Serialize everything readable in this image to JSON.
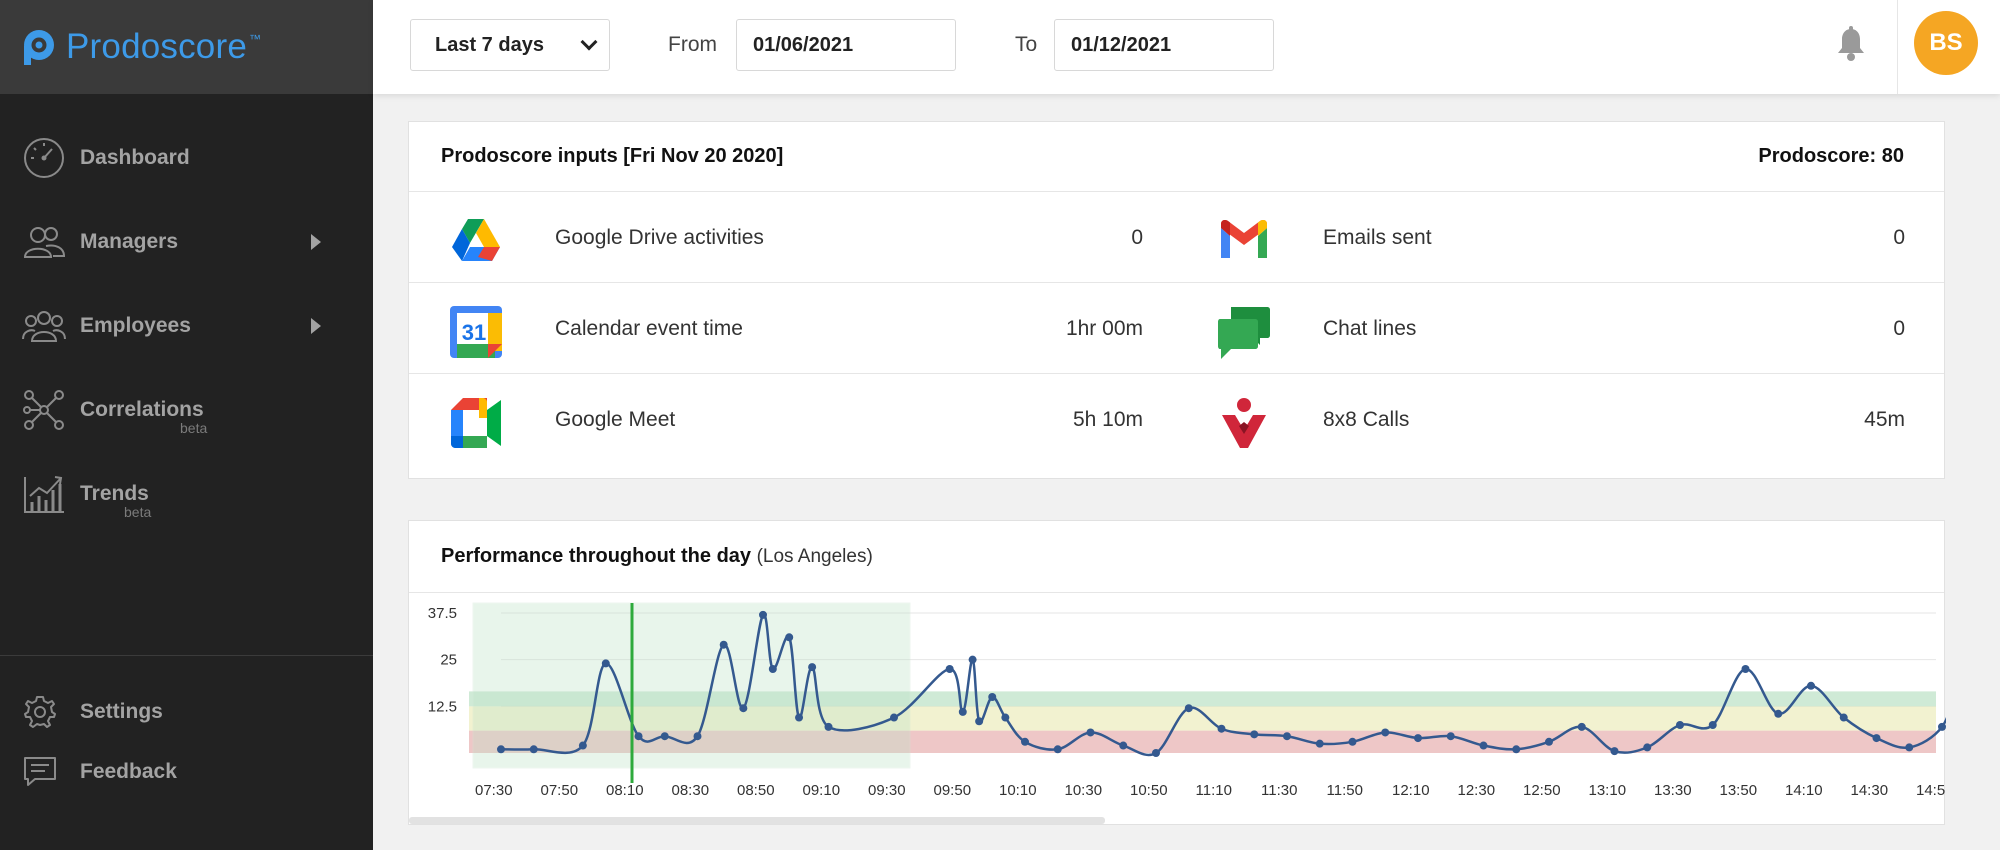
{
  "app": {
    "name": "Prodoscore",
    "tm": "™"
  },
  "sidebar": {
    "items": [
      {
        "label": "Dashboard",
        "icon": "speedometer-icon"
      },
      {
        "label": "Managers",
        "icon": "managers-icon",
        "has_submenu": true
      },
      {
        "label": "Employees",
        "icon": "employees-icon",
        "has_submenu": true
      },
      {
        "label": "Correlations",
        "sub": "beta",
        "icon": "network-icon"
      },
      {
        "label": "Trends",
        "sub": "beta",
        "icon": "trends-icon"
      }
    ],
    "bottom": [
      {
        "label": "Settings",
        "icon": "gear-icon"
      },
      {
        "label": "Feedback",
        "icon": "feedback-icon"
      }
    ]
  },
  "header": {
    "range": "Last 7 days",
    "from_label": "From",
    "from_value": "01/06/2021",
    "to_label": "To",
    "to_value": "01/12/2021",
    "avatar_initials": "BS",
    "avatar_color": "#f5a623"
  },
  "inputs": {
    "title": "Prodoscore inputs [Fri Nov 20 2020]",
    "score_text": "Prodoscore: 80",
    "rows": [
      {
        "left": {
          "icon": "google-drive-icon",
          "label": "Google Drive activities",
          "value": "0"
        },
        "right": {
          "icon": "gmail-icon",
          "label": "Emails sent",
          "value": "0"
        }
      },
      {
        "left": {
          "icon": "google-calendar-icon",
          "label": "Calendar event time",
          "value": "1hr 00m",
          "badge": "31"
        },
        "right": {
          "icon": "google-chat-icon",
          "label": "Chat lines",
          "value": "0"
        }
      },
      {
        "left": {
          "icon": "google-meet-icon",
          "label": "Google Meet",
          "value": "5h 10m"
        },
        "right": {
          "icon": "8x8-icon",
          "label": "8x8 Calls",
          "value": "45m"
        }
      }
    ]
  },
  "performance": {
    "title": "Performance throughout the day",
    "subtitle": "(Los Angeles)",
    "chart_data": {
      "type": "line",
      "title": "Performance throughout the day",
      "subtitle": "(Los Angeles)",
      "ylim": [
        0,
        37.5
      ],
      "y_ticks": [
        12.5,
        25,
        37.5
      ],
      "x_ticks": [
        "07:30",
        "07:50",
        "08:10",
        "08:30",
        "08:50",
        "09:10",
        "09:30",
        "09:50",
        "10:10",
        "10:30",
        "10:50",
        "11:10",
        "11:30",
        "11:50",
        "12:10",
        "12:30",
        "12:50",
        "13:10",
        "13:30",
        "13:50",
        "14:10",
        "14:30",
        "14:5"
      ],
      "x_start": "07:30",
      "x_end": "14:55",
      "bands": [
        {
          "from": 0,
          "to": 6,
          "color": "#e8b4b4"
        },
        {
          "from": 6,
          "to": 12.5,
          "color": "#eeeec0"
        },
        {
          "from": 12.5,
          "to": 16.5,
          "color": "#bfe3c8"
        }
      ],
      "highlight_range": [
        "07:30",
        "09:30"
      ],
      "marker_time": "08:10",
      "series": [
        {
          "color": "#34598f",
          "points": [
            [
              "07:30",
              1
            ],
            [
              "07:40",
              1
            ],
            [
              "07:55",
              2
            ],
            [
              "08:02",
              24
            ],
            [
              "08:12",
              4.5
            ],
            [
              "08:20",
              4.5
            ],
            [
              "08:30",
              4.5
            ],
            [
              "08:38",
              29
            ],
            [
              "08:44",
              12
            ],
            [
              "08:50",
              37
            ],
            [
              "08:53",
              22.5
            ],
            [
              "08:58",
              31
            ],
            [
              "09:01",
              9.5
            ],
            [
              "09:05",
              23
            ],
            [
              "09:10",
              7
            ],
            [
              "09:30",
              9.5
            ],
            [
              "09:47",
              22.5
            ],
            [
              "09:51",
              11
            ],
            [
              "09:54",
              25
            ],
            [
              "09:56",
              8.5
            ],
            [
              "10:00",
              15
            ],
            [
              "10:04",
              9.5
            ],
            [
              "10:10",
              3
            ],
            [
              "10:20",
              1
            ],
            [
              "10:30",
              5.5
            ],
            [
              "10:40",
              2
            ],
            [
              "10:50",
              0
            ],
            [
              "11:00",
              12
            ],
            [
              "11:10",
              6.5
            ],
            [
              "11:20",
              5
            ],
            [
              "11:30",
              4.5
            ],
            [
              "11:40",
              2.5
            ],
            [
              "11:50",
              3
            ],
            [
              "12:00",
              5.5
            ],
            [
              "12:10",
              4
            ],
            [
              "12:20",
              4.5
            ],
            [
              "12:30",
              2
            ],
            [
              "12:40",
              1
            ],
            [
              "12:50",
              3
            ],
            [
              "13:00",
              7
            ],
            [
              "13:10",
              0.5
            ],
            [
              "13:20",
              1.5
            ],
            [
              "13:30",
              7.5
            ],
            [
              "13:40",
              7.5
            ],
            [
              "13:50",
              22.5
            ],
            [
              "14:00",
              10.5
            ],
            [
              "14:10",
              18
            ],
            [
              "14:20",
              9.5
            ],
            [
              "14:30",
              4
            ],
            [
              "14:40",
              1.5
            ],
            [
              "14:50",
              7
            ],
            [
              "14:55",
              19
            ]
          ]
        }
      ]
    }
  }
}
